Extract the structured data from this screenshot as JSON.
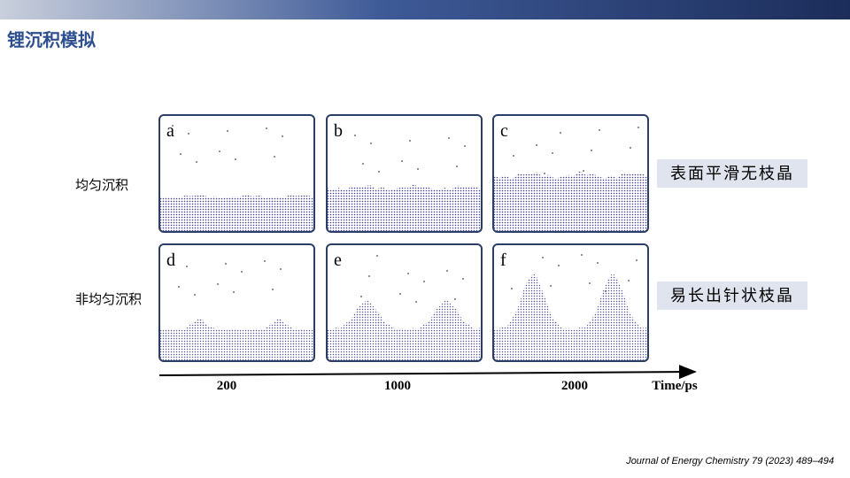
{
  "header": {
    "title": "锂沉积模拟"
  },
  "rows": [
    {
      "label": "均匀沉积",
      "caption": "表面平滑无枝晶"
    },
    {
      "label": "非均匀沉积",
      "caption": "易长出针状枝晶"
    }
  ],
  "panels": [
    "a",
    "b",
    "c",
    "d",
    "e",
    "f"
  ],
  "time_axis": {
    "ticks": [
      "200",
      "1000",
      "2000"
    ],
    "label": "Time/ps"
  },
  "citation": "Journal of Energy Chemistry 79 (2023) 489–494"
}
